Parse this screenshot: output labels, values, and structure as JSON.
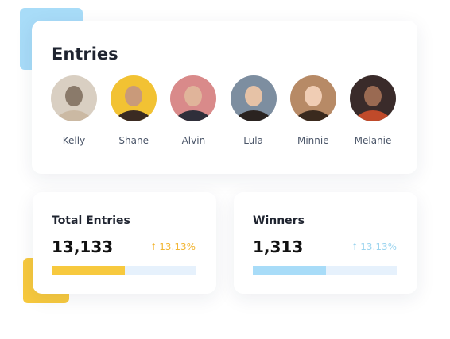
{
  "entries": {
    "title": "Entries",
    "people": [
      "Kelly",
      "Shane",
      "Alvin",
      "Lula",
      "Minnie",
      "Melanie"
    ]
  },
  "stats": [
    {
      "label": "Total Entries",
      "value": "13,133",
      "change": "13.13%",
      "progress": 51,
      "color": "#f7c93e",
      "change_color": "#f2b532"
    },
    {
      "label": "Winners",
      "value": "1,313",
      "change": "13.13%",
      "progress": 51,
      "color": "#a8dcf8",
      "change_color": "#9bd4ef"
    }
  ]
}
